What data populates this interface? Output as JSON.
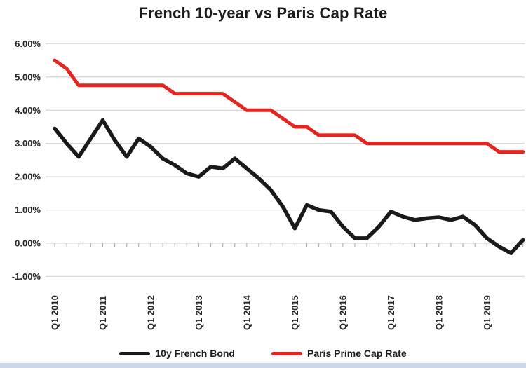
{
  "title": "French 10-year vs Paris Cap Rate",
  "colors": {
    "bond_line": "#1a1a1a",
    "cap_rate_line": "#e8231d",
    "gridline": "#d9d9d9",
    "axis_tick": "#a6a6a6",
    "axis_text": "#262626",
    "bottom_strip": "#ccd8ea"
  },
  "chart_data": {
    "type": "line",
    "title": "French 10-year vs Paris Cap Rate",
    "xlabel": "",
    "ylabel": "",
    "ylim": [
      -1,
      6
    ],
    "grid": "horizontal",
    "legend_position": "bottom",
    "x_categories": [
      "Q1 2010",
      "Q2 2010",
      "Q3 2010",
      "Q4 2010",
      "Q1 2011",
      "Q2 2011",
      "Q3 2011",
      "Q4 2011",
      "Q1 2012",
      "Q2 2012",
      "Q3 2012",
      "Q4 2012",
      "Q1 2013",
      "Q2 2013",
      "Q3 2013",
      "Q4 2013",
      "Q1 2014",
      "Q2 2014",
      "Q3 2014",
      "Q4 2014",
      "Q1 2015",
      "Q2 2015",
      "Q3 2015",
      "Q4 2015",
      "Q1 2016",
      "Q2 2016",
      "Q3 2016",
      "Q4 2016",
      "Q1 2017",
      "Q2 2017",
      "Q3 2017",
      "Q4 2017",
      "Q1 2018",
      "Q2 2018",
      "Q3 2018",
      "Q4 2018",
      "Q1 2019",
      "Q2 2019",
      "Q3 2019",
      "Q4 2019"
    ],
    "x_tick_labels": [
      "Q1 2010",
      "Q1 2011",
      "Q1 2012",
      "Q1 2013",
      "Q1 2014",
      "Q1 2015",
      "Q1 2016",
      "Q1 2017",
      "Q1 2018",
      "Q1 2019"
    ],
    "x_tick_every": 4,
    "y_ticks": [
      {
        "value": 6,
        "label": "6.00%"
      },
      {
        "value": 5,
        "label": "5.00%"
      },
      {
        "value": 4,
        "label": "4.00%"
      },
      {
        "value": 3,
        "label": "3.00%"
      },
      {
        "value": 2,
        "label": "2.00%"
      },
      {
        "value": 1,
        "label": "1.00%"
      },
      {
        "value": 0,
        "label": "0.00%"
      },
      {
        "value": -1,
        "label": "-1.00%"
      }
    ],
    "series": [
      {
        "name": "10y French Bond",
        "color": "#1a1a1a",
        "values": [
          3.45,
          3.0,
          2.6,
          3.15,
          3.7,
          3.1,
          2.6,
          3.15,
          2.9,
          2.55,
          2.35,
          2.1,
          2.0,
          2.3,
          2.25,
          2.55,
          2.25,
          1.95,
          1.6,
          1.1,
          0.45,
          1.15,
          1.0,
          0.95,
          0.5,
          0.15,
          0.15,
          0.5,
          0.95,
          0.8,
          0.7,
          0.75,
          0.78,
          0.7,
          0.8,
          0.55,
          0.15,
          -0.1,
          -0.3,
          0.1
        ]
      },
      {
        "name": "Paris Prime Cap Rate",
        "color": "#e8231d",
        "values": [
          5.5,
          5.25,
          4.75,
          4.75,
          4.75,
          4.75,
          4.75,
          4.75,
          4.75,
          4.75,
          4.5,
          4.5,
          4.5,
          4.5,
          4.5,
          4.25,
          4.0,
          4.0,
          4.0,
          3.75,
          3.5,
          3.5,
          3.25,
          3.25,
          3.25,
          3.25,
          3.0,
          3.0,
          3.0,
          3.0,
          3.0,
          3.0,
          3.0,
          3.0,
          3.0,
          3.0,
          3.0,
          2.75,
          2.75,
          2.75
        ]
      }
    ]
  },
  "legend": {
    "items": [
      {
        "label": "10y French Bond"
      },
      {
        "label": "Paris Prime Cap Rate"
      }
    ]
  }
}
